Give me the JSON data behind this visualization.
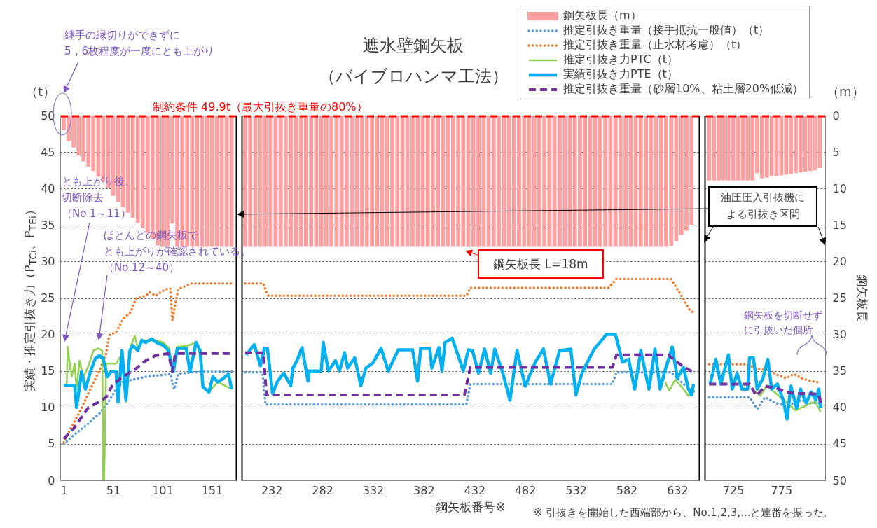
{
  "chart_data": [
    {
      "type": "line",
      "ylabel": "実績・推定引抜き力（P$_{TCi}$、P$_{TEi}$）",
      "annotations": [
        "（t）",
        "継手の縁切りができずに",
        "5，6枚程度が一度にとも上がり",
        "とも上がり後、",
        "切断除去",
        "（No.1～11）",
        "ほとんどの鋼矢板で",
        "とも上がりが確認されている。",
        "（No.12～40）"
      ],
      "xlim": [
        1,
        172
      ],
      "xticks": [
        1,
        51,
        101,
        151
      ],
      "ylim": [
        0,
        50
      ],
      "yticks": [
        0,
        5,
        10,
        15,
        20,
        25,
        30,
        35,
        40,
        45,
        50
      ],
      "y2lim": [
        50,
        0
      ],
      "grid": "y",
      "tick_labels": "xy",
      "ref_lines": [
        {
          "axis": "y",
          "value": 49.9,
          "label": "制約条件 49.9t（最大引抜き重量の80%）",
          "color": "#ff0000",
          "line_style": "dashed"
        }
      ],
      "series": [
        {
          "type": "bar",
          "axis": "y2",
          "color": "#ff9f9f",
          "x": [
            1,
            6,
            11,
            16,
            21,
            26,
            31,
            36,
            41,
            46,
            51,
            56,
            61,
            66,
            71,
            76,
            81,
            86,
            91,
            96,
            101,
            106,
            111,
            116,
            121,
            126,
            131,
            136,
            141,
            146,
            151,
            156,
            161,
            166,
            171
          ],
          "values": [
            2.0,
            3.5,
            4.4,
            5.5,
            6.3,
            7.0,
            7.6,
            8.4,
            9.1,
            10.0,
            11.0,
            11.8,
            12.6,
            13.3,
            14.0,
            14.7,
            15.4,
            16.1,
            16.9,
            17.8,
            18,
            18,
            14.8,
            18,
            18,
            18,
            18,
            18,
            18,
            18,
            18,
            18,
            18,
            18,
            18
          ]
        },
        {
          "line_style": "dotted",
          "color": "#5b9bd5",
          "x": [
            1,
            13,
            26,
            38,
            46,
            54,
            61,
            74,
            84,
            99,
            109,
            112,
            113,
            117,
            130,
            140,
            171
          ],
          "values": [
            5.0,
            6.4,
            7.8,
            9.3,
            10.7,
            12.5,
            13.5,
            13.9,
            14.2,
            14.4,
            14.6,
            12.8,
            12.5,
            14.6,
            14.8,
            14.9,
            14.9
          ]
        },
        {
          "line_style": "dotted",
          "color": "#ed7d31",
          "x": [
            1,
            8,
            18,
            28,
            38,
            44,
            47,
            54,
            61,
            69,
            74,
            84,
            88,
            94,
            104,
            109,
            111,
            114,
            117,
            130,
            171
          ],
          "values": [
            5.2,
            7.1,
            9.6,
            12.5,
            15.3,
            17.4,
            19.9,
            20.3,
            22.1,
            23.1,
            24.9,
            25.3,
            25.8,
            25.3,
            26.2,
            26.3,
            21.9,
            24.2,
            26.2,
            27.0,
            27.0
          ]
        },
        {
          "line_style": "solid",
          "color": "#92d050",
          "x": [
            1,
            4,
            5,
            7,
            9,
            12,
            14,
            17,
            21,
            26,
            31,
            36,
            40,
            41,
            42,
            44,
            49,
            54,
            59,
            64,
            69,
            73,
            76,
            80,
            84,
            94,
            102,
            108,
            111,
            116,
            127,
            135,
            140,
            142,
            148,
            157,
            171
          ],
          "values": [
            13.0,
            13.0,
            18.3,
            16.0,
            14.2,
            16.0,
            12.5,
            16.4,
            14.2,
            15.7,
            17.8,
            18.1,
            17.8,
            0,
            0,
            16.0,
            16.0,
            16.0,
            17.1,
            10.7,
            18.5,
            19.8,
            18.1,
            19.0,
            19.2,
            19.2,
            18.9,
            18.1,
            14.9,
            18.3,
            18.5,
            18.9,
            17.8,
            12.8,
            12.1,
            13.5,
            12.5
          ]
        },
        {
          "line_style": "solid",
          "color": "#00b0f0",
          "x": [
            1,
            12,
            14,
            17,
            19,
            23,
            28,
            33,
            37,
            41,
            45,
            49,
            54,
            56,
            60,
            64,
            68,
            71,
            76,
            80,
            84,
            90,
            95,
            102,
            107,
            112,
            116,
            125,
            129,
            135,
            139,
            142,
            148,
            152,
            157,
            162,
            168,
            171
          ],
          "values": [
            13.0,
            13.0,
            10.0,
            12.8,
            14.9,
            12.5,
            14.9,
            16.7,
            17.1,
            16.7,
            14.2,
            14.9,
            14.9,
            10.7,
            17.8,
            11.0,
            17.8,
            18.5,
            17.8,
            19.2,
            18.9,
            19.4,
            18.9,
            18.5,
            17.8,
            14.9,
            18.1,
            18.1,
            14.9,
            18.9,
            17.8,
            12.8,
            12.1,
            14.2,
            13.5,
            13.9,
            14.6,
            12.5
          ]
        },
        {
          "line_style": "dashed",
          "color": "#7030a0",
          "x": [
            1,
            11,
            26,
            36,
            44,
            51,
            61,
            74,
            84,
            94,
            107,
            111,
            114,
            171
          ],
          "values": [
            5.7,
            7.1,
            10.0,
            10.7,
            11.4,
            13.2,
            14.2,
            15.3,
            16.4,
            17.1,
            17.4,
            14.9,
            17.4,
            17.4
          ]
        }
      ]
    },
    {
      "type": "line",
      "title": "遮水壁鋼矢板",
      "subtitle": "（バイブロハンマ工法）",
      "xlabel": "鋼矢板番号※",
      "legend": "top right",
      "annotations": [
        "鋼矢板長 L=18m",
        "※ 引抜きを開始した西端部から、No.1,2,3,...と連番を振った。"
      ],
      "xlim": [
        206,
        650
      ],
      "xticks": [
        232,
        282,
        332,
        382,
        432,
        482,
        532,
        582,
        632
      ],
      "ylim": [
        0,
        50
      ],
      "yticks": [
        0,
        5,
        10,
        15,
        20,
        25,
        30,
        35,
        40,
        45,
        50
      ],
      "y2lim": [
        50,
        0
      ],
      "grid": "y",
      "tick_labels": "x",
      "ref_lines": [
        {
          "axis": "y",
          "value": 49.9,
          "color": "#ff0000",
          "line_style": "dashed"
        }
      ],
      "series": [
        {
          "name": "鋼矢板長（m）",
          "type": "bar",
          "axis": "y2",
          "color": "#ff9f9f",
          "x": [
            206,
            211,
            216,
            221,
            226,
            231,
            236,
            241,
            246,
            251,
            256,
            261,
            266,
            271,
            276,
            281,
            286,
            291,
            296,
            301,
            306,
            311,
            316,
            321,
            326,
            331,
            336,
            341,
            346,
            351,
            356,
            361,
            366,
            371,
            376,
            381,
            386,
            391,
            396,
            401,
            406,
            411,
            416,
            421,
            426,
            431,
            436,
            441,
            446,
            451,
            456,
            461,
            466,
            471,
            476,
            481,
            486,
            491,
            496,
            501,
            506,
            511,
            516,
            521,
            526,
            531,
            536,
            541,
            546,
            551,
            556,
            561,
            566,
            571,
            576,
            581,
            586,
            591,
            596,
            601,
            606,
            611,
            616,
            621,
            626,
            631,
            636,
            641,
            646
          ],
          "values": [
            18,
            18,
            18,
            18,
            18,
            18,
            18,
            18,
            18,
            18,
            18,
            18,
            18,
            18,
            18,
            18,
            18,
            18,
            18,
            18,
            18,
            18,
            18,
            18,
            18,
            18,
            18,
            18,
            18,
            18,
            18,
            18,
            18,
            18,
            18,
            18,
            18,
            18,
            18,
            18,
            18,
            18,
            18,
            18,
            18,
            18,
            18,
            18,
            18,
            18,
            18,
            18,
            18,
            18,
            18,
            18,
            18,
            18,
            18,
            18,
            18,
            18,
            18,
            18,
            18,
            18,
            18,
            18,
            18,
            18,
            18,
            18,
            18,
            18,
            18,
            18,
            18,
            18,
            18,
            18,
            18,
            18,
            18,
            18,
            17.9,
            17.2,
            16.4,
            15.8,
            15.0
          ]
        },
        {
          "name": "推定引抜き重量（接手抵抗一般値）（t）",
          "line_style": "dotted",
          "color": "#5b9bd5",
          "x": [
            206,
            223,
            226,
            424,
            428,
            568,
            572,
            626,
            635,
            644,
            649
          ],
          "values": [
            14.8,
            14.8,
            10.4,
            10.4,
            13.2,
            13.2,
            14.8,
            14.8,
            13.6,
            12.5,
            12.1
          ]
        },
        {
          "name": "推定引抜き重量（止水材考慮）（t）",
          "line_style": "dotted",
          "color": "#ed7d31",
          "x": [
            206,
            224,
            227,
            229,
            424,
            428,
            564,
            572,
            626,
            636,
            644,
            649
          ],
          "values": [
            27.0,
            27.0,
            25.8,
            25.3,
            25.3,
            26.4,
            26.4,
            27.6,
            27.6,
            25.3,
            23.4,
            22.9
          ]
        },
        {
          "name": "推定引抜き力PTC（t）",
          "line_style": "solid",
          "color": "#92d050",
          "x": [
            620,
            624,
            630,
            637,
            643,
            649
          ],
          "values": [
            13.5,
            12.3,
            13.8,
            12.7,
            11.6,
            12.4
          ]
        },
        {
          "name": "実績引抜き力PTE（t）",
          "line_style": "solid",
          "color": "#00b0f0",
          "x": [
            207,
            215,
            221,
            225,
            228,
            233,
            238,
            244,
            251,
            253,
            257,
            262,
            268,
            269,
            281,
            283,
            288,
            295,
            299,
            304,
            307,
            314,
            320,
            325,
            332,
            340,
            347,
            357,
            371,
            376,
            379,
            388,
            390,
            397,
            400,
            403,
            410,
            415,
            421,
            426,
            430,
            436,
            442,
            448,
            452,
            460,
            467,
            474,
            482,
            492,
            500,
            507,
            516,
            527,
            532,
            538,
            550,
            558,
            562,
            571,
            578,
            584,
            590,
            596,
            604,
            610,
            615,
            620,
            627,
            632,
            638,
            643,
            646,
            648
          ],
          "values": [
            17.2,
            18.6,
            15.7,
            18.1,
            18.1,
            11.9,
            13.6,
            14.7,
            13.0,
            15.4,
            16.4,
            18.2,
            13.6,
            15.0,
            15.0,
            18.9,
            15.0,
            16.4,
            15.0,
            17.5,
            15.4,
            16.8,
            13.0,
            15.4,
            16.1,
            18.1,
            15.0,
            17.9,
            17.9,
            13.6,
            18.1,
            18.1,
            15.4,
            18.2,
            15.0,
            18.9,
            19.5,
            17.5,
            15.0,
            17.9,
            17.8,
            14.7,
            18.0,
            14.7,
            18.0,
            14.7,
            11.0,
            17.8,
            12.9,
            16.2,
            18.0,
            13.2,
            17.8,
            18.0,
            11.7,
            14.7,
            18.0,
            19.3,
            20.0,
            20.0,
            16.2,
            16.6,
            12.5,
            17.8,
            12.5,
            18.0,
            12.5,
            15.1,
            18.3,
            14.0,
            15.5,
            12.5,
            11.7,
            13.2
          ]
        },
        {
          "name": "推定引抜き重量（砂層10%、粘土層20%低減）",
          "line_style": "dashed",
          "color": "#7030a0",
          "x": [
            206,
            224,
            227,
            422,
            428,
            568,
            572,
            623,
            631,
            639,
            648
          ],
          "values": [
            17.5,
            17.5,
            11.7,
            11.7,
            15.5,
            15.5,
            17.2,
            17.2,
            16.3,
            15.5,
            14.8
          ]
        }
      ]
    },
    {
      "type": "line",
      "y2label": "鋼矢板長",
      "annotations": [
        "（m）",
        "油圧圧入引抜機に",
        "よる引抜き区間",
        "鋼矢板を切断せず",
        "に引抜いた個所"
      ],
      "xlim": [
        699,
        817
      ],
      "xticks": [
        725,
        775
      ],
      "ylim": [
        0,
        50
      ],
      "y2lim": [
        50,
        0
      ],
      "y2ticks": [
        0,
        5,
        10,
        15,
        20,
        25,
        30,
        35,
        40,
        45,
        50
      ],
      "grid": "y",
      "ref_lines": [
        {
          "axis": "y",
          "value": 49.9,
          "color": "#ff0000",
          "line_style": "dashed"
        }
      ],
      "series": [
        {
          "type": "bar",
          "axis": "y2",
          "color": "#ff9f9f",
          "x": [
            700,
            705,
            710,
            715,
            720,
            725,
            730,
            735,
            740,
            745,
            750,
            755,
            760,
            765,
            770,
            775,
            780,
            785,
            790,
            795,
            800,
            805,
            810,
            815
          ],
          "values": [
            8.9,
            8.9,
            8.9,
            8.9,
            8.9,
            8.9,
            8.9,
            8.9,
            8.9,
            8.9,
            7.9,
            8.6,
            8.5,
            8.3,
            8.3,
            8.2,
            8.1,
            8.0,
            7.9,
            7.8,
            7.7,
            7.6,
            7.5,
            7.2
          ]
        },
        {
          "line_style": "dotted",
          "color": "#5b9bd5",
          "x": [
            700,
            742,
            750,
            758,
            769,
            780,
            788,
            796,
            806,
            816
          ],
          "values": [
            11.4,
            11.4,
            9.8,
            11.4,
            10.6,
            10.2,
            10.6,
            11.0,
            10.6,
            10.6
          ]
        },
        {
          "line_style": "dotted",
          "color": "#ed7d31",
          "x": [
            700,
            740,
            749,
            761,
            772,
            780,
            788,
            796,
            806,
            816
          ],
          "values": [
            15.9,
            15.9,
            15.3,
            15.1,
            14.4,
            14.0,
            14.6,
            14.0,
            13.6,
            13.4
          ]
        },
        {
          "line_style": "solid",
          "color": "#92d050",
          "x": [
            745,
            753,
            760,
            790,
            800,
            810,
            816
          ],
          "values": [
            12.5,
            11.6,
            13.0,
            9.6,
            10.2,
            10.8,
            9.4
          ]
        },
        {
          "line_style": "solid",
          "color": "#00b0f0",
          "x": [
            701,
            707,
            712,
            716,
            720,
            724,
            729,
            734,
            740,
            742,
            746,
            750,
            756,
            761,
            765,
            771,
            777,
            781,
            785,
            791,
            795,
            801,
            806,
            811,
            814,
            816
          ],
          "values": [
            13.2,
            16.6,
            13.2,
            15.1,
            17.2,
            12.5,
            14.7,
            12.5,
            12.5,
            16.8,
            16.8,
            12.5,
            14.0,
            16.6,
            12.5,
            13.2,
            11.0,
            8.4,
            12.9,
            9.9,
            12.5,
            10.6,
            12.1,
            11.0,
            12.5,
            9.9
          ]
        },
        {
          "line_style": "dashed",
          "color": "#7030a0",
          "x": [
            700,
            742,
            749,
            758,
            769,
            780,
            790,
            803,
            814,
            816
          ],
          "values": [
            13.2,
            13.2,
            11.6,
            12.9,
            12.7,
            12.1,
            11.9,
            11.9,
            11.8,
            10.6
          ]
        }
      ]
    }
  ]
}
